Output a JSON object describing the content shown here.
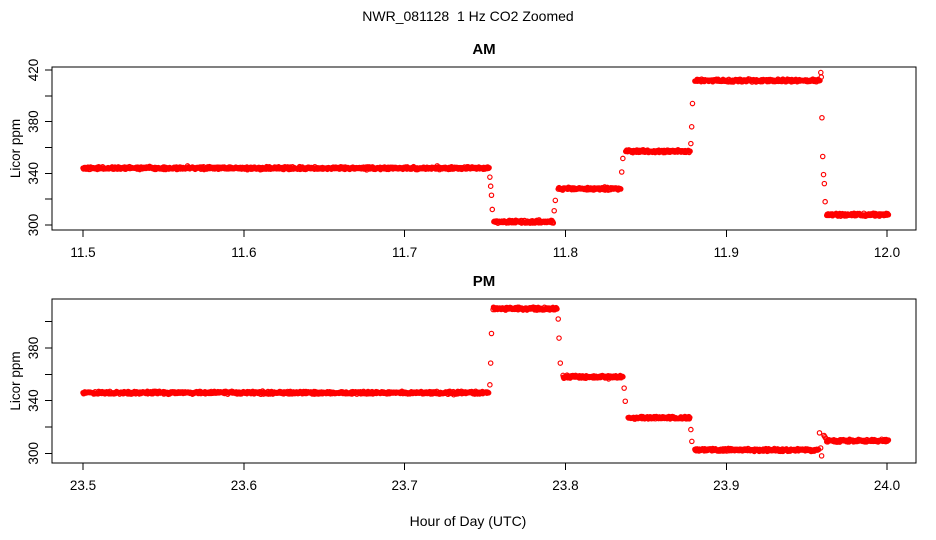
{
  "figure": {
    "title": "NWR_081128  1 Hz CO2 Zoomed",
    "x_axis_title": "Hour of Day (UTC)",
    "background_color": "#FFFFFF",
    "axis_color": "#000000",
    "point_color": "#FF0000",
    "marker": "open-circle",
    "sample_rate_hz": 1
  },
  "chart_data": [
    {
      "type": "scatter",
      "title": "AM",
      "ylabel": "Licor ppm",
      "color": "#FF0000",
      "xlim": [
        11.4807,
        12.018
      ],
      "ylim": [
        296.1,
        422.3
      ],
      "xticks": [
        11.5,
        11.6,
        11.7,
        11.8,
        11.9,
        12.0
      ],
      "xtick_labels": [
        "11.5",
        "11.6",
        "11.7",
        "11.8",
        "11.9",
        "12.0"
      ],
      "yticks": [
        300,
        320,
        340,
        360,
        380,
        400,
        420
      ],
      "ytick_labels": [
        "300",
        "",
        "340",
        "",
        "380",
        "",
        "420"
      ],
      "grid": false,
      "segments": [
        {
          "x0": 11.5,
          "x1": 11.7525,
          "y": 344.0
        },
        {
          "x0": 11.7555,
          "x1": 11.7925,
          "y": 302.5
        },
        {
          "x0": 11.7955,
          "x1": 11.8345,
          "y": 328.0
        },
        {
          "x0": 11.8375,
          "x1": 11.8775,
          "y": 357.0
        },
        {
          "x0": 11.8805,
          "x1": 11.9585,
          "y": 411.8
        },
        {
          "x0": 11.9625,
          "x1": 12.001,
          "y": 308.0
        }
      ],
      "transition_points": [
        [
          11.753,
          337.0
        ],
        [
          11.7535,
          330.0
        ],
        [
          11.754,
          323.0
        ],
        [
          11.7545,
          312.0
        ],
        [
          11.793,
          311.0
        ],
        [
          11.7937,
          319.0
        ],
        [
          11.835,
          341.0
        ],
        [
          11.8357,
          351.5
        ],
        [
          11.878,
          363.0
        ],
        [
          11.8785,
          376.0
        ],
        [
          11.879,
          394.0
        ],
        [
          11.9588,
          418.0
        ],
        [
          11.9591,
          414.5
        ],
        [
          11.9595,
          383.0
        ],
        [
          11.96,
          353.0
        ],
        [
          11.9605,
          339.0
        ],
        [
          11.961,
          332.0
        ],
        [
          11.9615,
          318.0
        ]
      ]
    },
    {
      "type": "scatter",
      "title": "PM",
      "ylabel": "Licor ppm",
      "color": "#FF0000",
      "xlim": [
        23.4807,
        24.018
      ],
      "ylim": [
        292.6,
        417.2
      ],
      "xticks": [
        23.5,
        23.6,
        23.7,
        23.8,
        23.9,
        24.0
      ],
      "xtick_labels": [
        "23.5",
        "23.6",
        "23.7",
        "23.8",
        "23.9",
        "24.0"
      ],
      "yticks": [
        300,
        320,
        340,
        360,
        380,
        400
      ],
      "ytick_labels": [
        "300",
        "",
        "340",
        "",
        "380",
        ""
      ],
      "grid": false,
      "segments": [
        {
          "x0": 23.5,
          "x1": 23.7525,
          "y": 346.0
        },
        {
          "x0": 23.755,
          "x1": 23.795,
          "y": 409.8
        },
        {
          "x0": 23.7985,
          "x1": 23.836,
          "y": 358.0
        },
        {
          "x0": 23.839,
          "x1": 23.8775,
          "y": 327.0
        },
        {
          "x0": 23.8805,
          "x1": 23.9575,
          "y": 302.5
        },
        {
          "x0": 23.9625,
          "x1": 24.001,
          "y": 309.5
        }
      ],
      "transition_points": [
        [
          23.753,
          352.0
        ],
        [
          23.7535,
          368.5
        ],
        [
          23.754,
          391.0
        ],
        [
          23.7955,
          402.0
        ],
        [
          23.796,
          387.5
        ],
        [
          23.7968,
          368.5
        ],
        [
          23.8365,
          349.5
        ],
        [
          23.8372,
          339.5
        ],
        [
          23.878,
          318.0
        ],
        [
          23.8786,
          309.0
        ],
        [
          23.958,
          315.5
        ],
        [
          23.9587,
          304.0
        ],
        [
          23.9593,
          298.0
        ],
        [
          23.9608,
          313.5
        ],
        [
          23.9613,
          312.5
        ],
        [
          23.9618,
          311.5
        ]
      ]
    }
  ]
}
